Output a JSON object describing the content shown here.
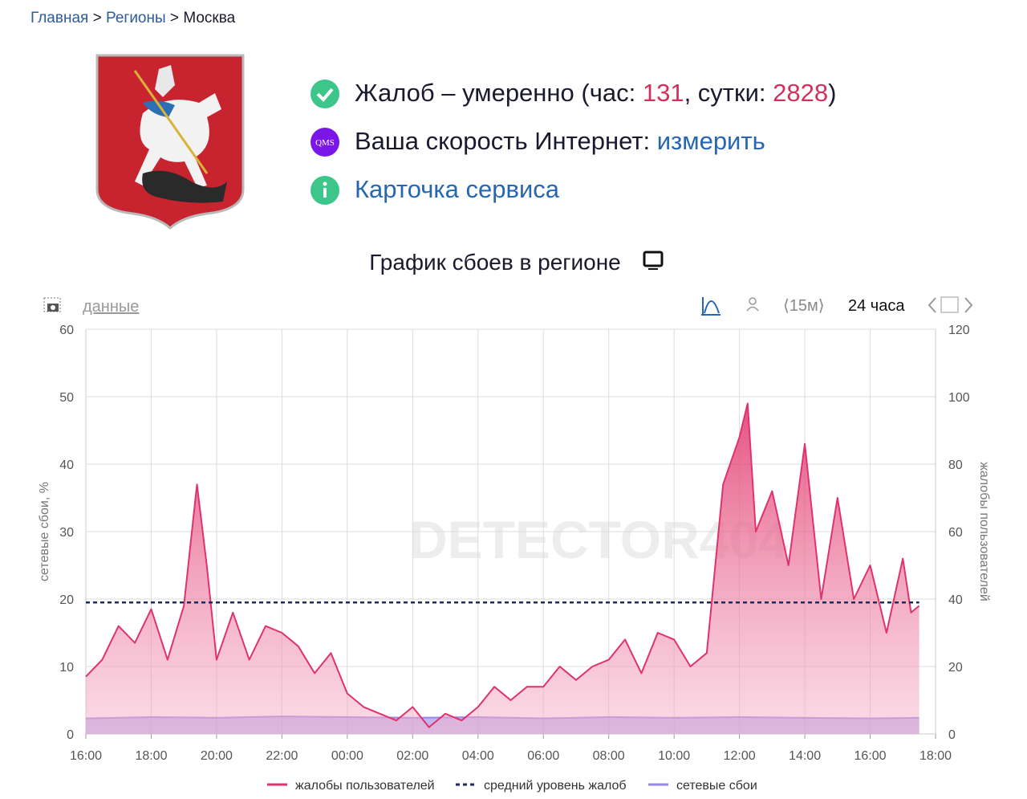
{
  "breadcrumb": [
    "Главная",
    "Регионы",
    "Москва"
  ],
  "status": {
    "complaints": {
      "text": "Жалоб – умеренно (час: ",
      "hour": 131,
      "mid": ", сутки: ",
      "day": 2828,
      "end": ")"
    },
    "speed": {
      "icon_label": "QMS",
      "text": "Ваша скорость Интернет: ",
      "link": "измерить"
    },
    "card": {
      "link": "Карточка сервиса"
    }
  },
  "toolbar": {
    "data_link": "данные",
    "interval": "⟨15м⟩",
    "range": "24 часа"
  },
  "chart_data": {
    "type": "area",
    "title": "График сбоев в регионе",
    "watermark": "DETECTOR404",
    "xlim": [
      16,
      42
    ],
    "xticks": [
      {
        "value": 16,
        "label": "16:00"
      },
      {
        "value": 18,
        "label": "18:00"
      },
      {
        "value": 20,
        "label": "20:00"
      },
      {
        "value": 22,
        "label": "22:00"
      },
      {
        "value": 24,
        "label": "00:00"
      },
      {
        "value": 26,
        "label": "02:00"
      },
      {
        "value": 28,
        "label": "04:00"
      },
      {
        "value": 30,
        "label": "06:00"
      },
      {
        "value": 32,
        "label": "08:00"
      },
      {
        "value": 34,
        "label": "10:00"
      },
      {
        "value": 36,
        "label": "12:00"
      },
      {
        "value": 38,
        "label": "14:00"
      },
      {
        "value": 40,
        "label": "16:00"
      },
      {
        "value": 42,
        "label": "18:00"
      }
    ],
    "ylabel": "сетевые сбои, %",
    "ylim": [
      0,
      60
    ],
    "yticks": [
      0,
      10,
      20,
      30,
      40,
      50,
      60
    ],
    "y2label": "жалобы пользователей",
    "y2lim": [
      0,
      120
    ],
    "y2ticks": [
      0,
      20,
      40,
      60,
      80,
      100,
      120
    ],
    "grid": true,
    "series": [
      {
        "name": "жалобы пользователей",
        "color": "#e0336b",
        "axis": "y2",
        "x": [
          16,
          16.5,
          17,
          17.5,
          18,
          18.5,
          19,
          19.4,
          19.7,
          20,
          20.5,
          21,
          21.5,
          22,
          22.5,
          23,
          23.5,
          24,
          24.5,
          25,
          25.5,
          26,
          26.5,
          27,
          27.5,
          28,
          28.5,
          29,
          29.5,
          30,
          30.5,
          31,
          31.5,
          32,
          32.5,
          33,
          33.5,
          34,
          34.5,
          35,
          35.5,
          36,
          36.25,
          36.5,
          37,
          37.5,
          38,
          38.5,
          39,
          39.5,
          40,
          40.5,
          41,
          41.25,
          41.5
        ],
        "values": [
          17,
          22,
          32,
          27,
          37,
          22,
          38,
          74,
          50,
          22,
          36,
          22,
          32,
          30,
          26,
          18,
          24,
          12,
          8,
          6,
          4,
          8,
          2,
          6,
          4,
          8,
          14,
          10,
          14,
          14,
          20,
          16,
          20,
          22,
          28,
          18,
          30,
          28,
          20,
          24,
          74,
          88,
          98,
          60,
          72,
          50,
          86,
          40,
          70,
          40,
          50,
          30,
          52,
          36,
          38
        ]
      },
      {
        "name": "средний уровень жалоб",
        "color": "#1c2a5e",
        "axis": "y2",
        "x": [
          16,
          41.5
        ],
        "values": [
          39,
          39
        ]
      },
      {
        "name": "сетевые сбои",
        "color": "#9a86e6",
        "x": [
          16,
          18,
          20,
          22,
          24,
          26,
          28,
          30,
          32,
          34,
          36,
          38,
          40,
          41.5
        ],
        "values": [
          2.3,
          2.5,
          2.4,
          2.6,
          2.5,
          2.4,
          2.5,
          2.3,
          2.5,
          2.4,
          2.5,
          2.4,
          2.3,
          2.4
        ]
      }
    ]
  }
}
